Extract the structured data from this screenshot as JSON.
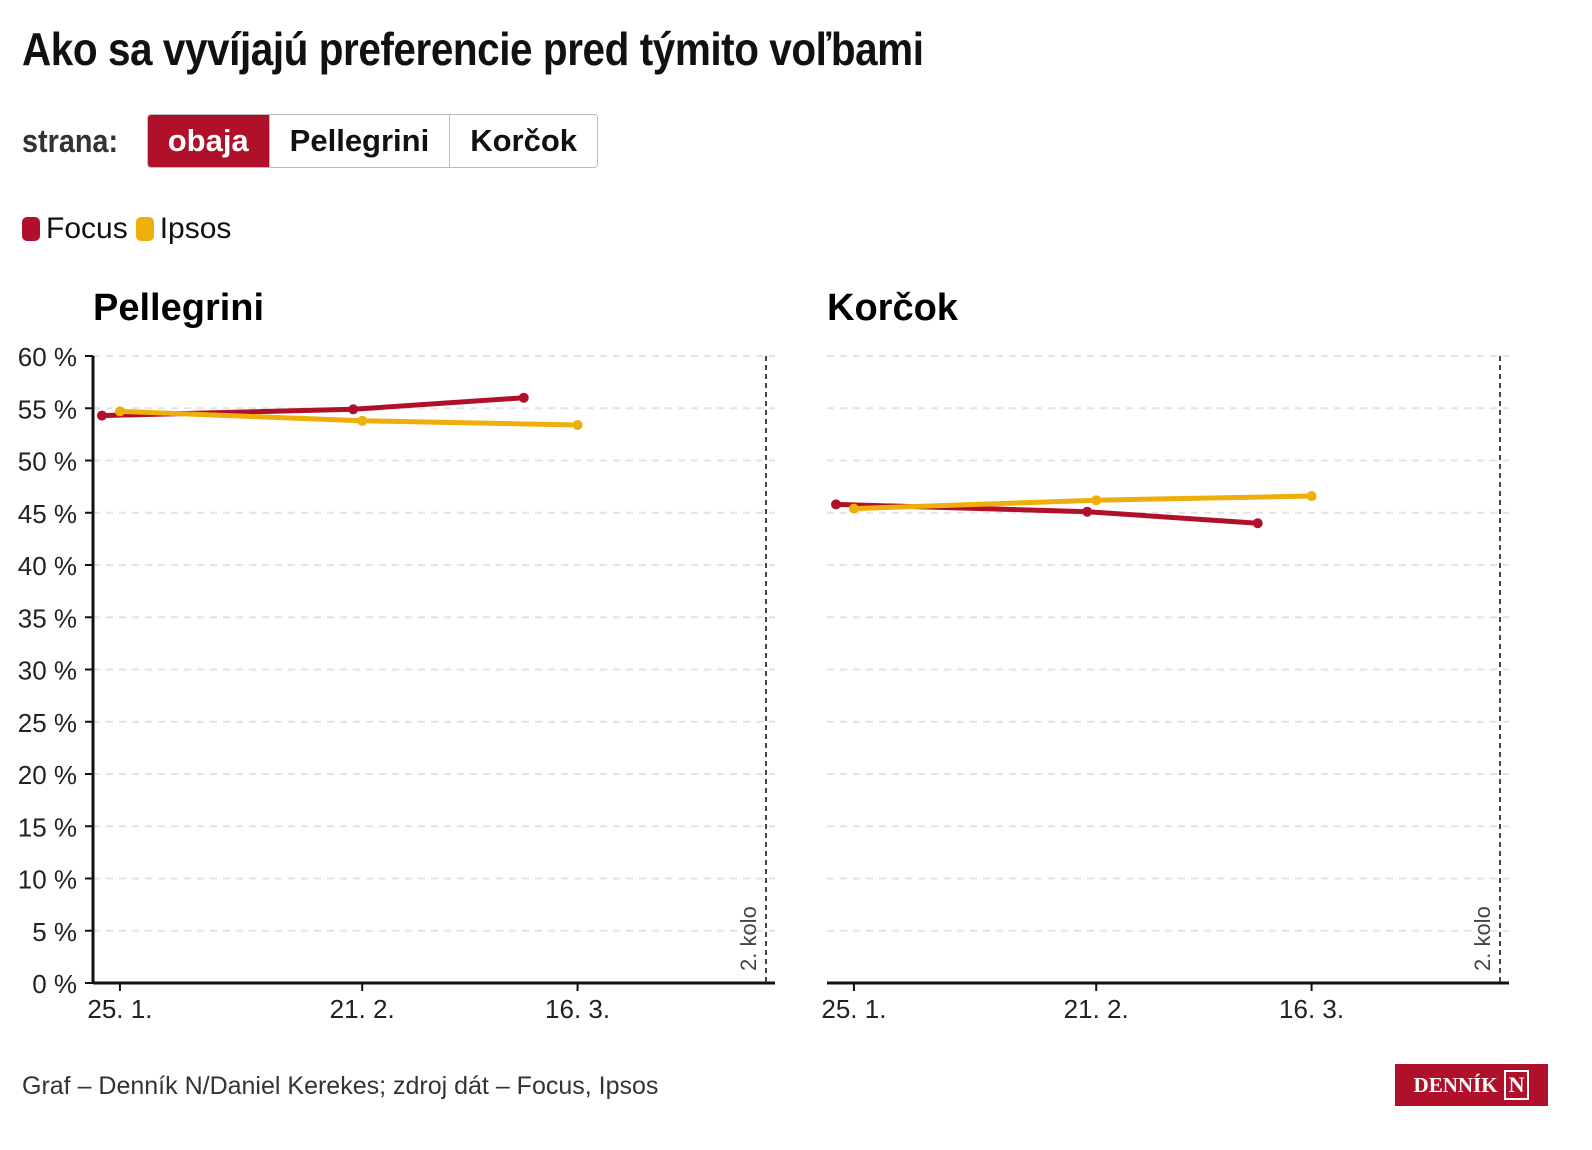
{
  "title": "Ako sa vyvíjajú preferencie pred týmito voľbami",
  "filter": {
    "label": "strana:",
    "options": [
      "obaja",
      "Pellegrini",
      "Korčok"
    ],
    "selected": "obaja"
  },
  "legend": [
    {
      "name": "Focus",
      "color": "#b0102a"
    },
    {
      "name": "Ipsos",
      "color": "#efaf0a"
    }
  ],
  "footer": "Graf – Denník N/Daniel Kerekes; zdroj dát – Focus, Ipsos",
  "logo": "DENNÍK N",
  "chart_data": [
    {
      "type": "line",
      "title": "Pellegrini",
      "ylim": [
        0,
        60
      ],
      "yticks": [
        0,
        5,
        10,
        15,
        20,
        25,
        30,
        35,
        40,
        45,
        50,
        55,
        60
      ],
      "ytick_suffix": " %",
      "xlim_day_of_year": [
        22,
        98
      ],
      "xticks": [
        {
          "day": 25,
          "label": "25. 1."
        },
        {
          "day": 52,
          "label": "21. 2."
        },
        {
          "day": 76,
          "label": "16. 3."
        }
      ],
      "annotation": {
        "day": 97,
        "label": "2. kolo"
      },
      "series": [
        {
          "name": "Focus",
          "points": [
            {
              "date": "23. 1.",
              "day": 23,
              "value": 54.3
            },
            {
              "date": "20. 2.",
              "day": 51,
              "value": 54.9
            },
            {
              "date": "10. 3.",
              "day": 70,
              "value": 56.0
            }
          ]
        },
        {
          "name": "Ipsos",
          "points": [
            {
              "date": "25. 1.",
              "day": 25,
              "value": 54.7
            },
            {
              "date": "21. 2.",
              "day": 52,
              "value": 53.8
            },
            {
              "date": "16. 3.",
              "day": 76,
              "value": 53.4
            }
          ]
        }
      ]
    },
    {
      "type": "line",
      "title": "Korčok",
      "ylim": [
        0,
        60
      ],
      "xlim_day_of_year": [
        22,
        98
      ],
      "xticks": [
        {
          "day": 25,
          "label": "25. 1."
        },
        {
          "day": 52,
          "label": "21. 2."
        },
        {
          "day": 76,
          "label": "16. 3."
        }
      ],
      "annotation": {
        "day": 97,
        "label": "2. kolo"
      },
      "series": [
        {
          "name": "Focus",
          "points": [
            {
              "date": "23. 1.",
              "day": 23,
              "value": 45.8
            },
            {
              "date": "20. 2.",
              "day": 51,
              "value": 45.1
            },
            {
              "date": "10. 3.",
              "day": 70,
              "value": 44.0
            }
          ]
        },
        {
          "name": "Ipsos",
          "points": [
            {
              "date": "25. 1.",
              "day": 25,
              "value": 45.4
            },
            {
              "date": "21. 2.",
              "day": 52,
              "value": 46.2
            },
            {
              "date": "16. 3.",
              "day": 76,
              "value": 46.6
            }
          ]
        }
      ]
    }
  ]
}
